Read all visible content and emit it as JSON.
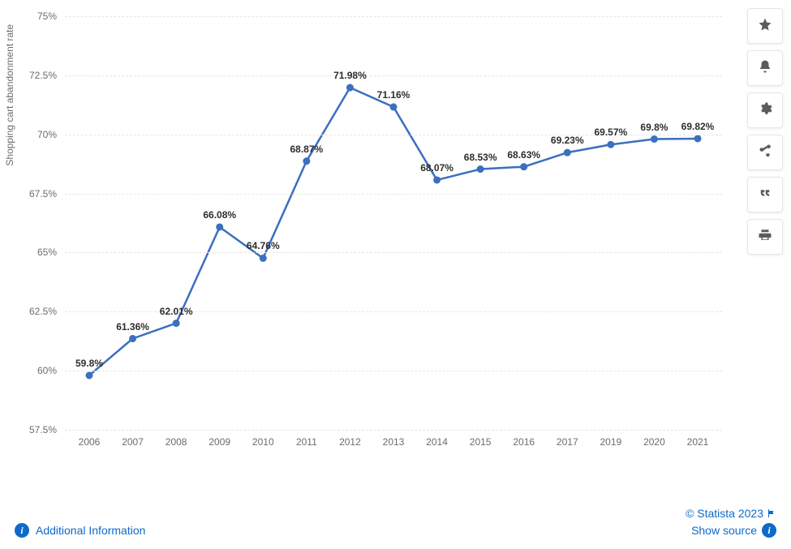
{
  "chart": {
    "type": "line",
    "y_axis_label": "Shopping cart abandonment rate",
    "ylim": [
      57.5,
      75
    ],
    "ytick_step": 2.5,
    "yticks": [
      57.5,
      60,
      62.5,
      65,
      67.5,
      70,
      72.5,
      75
    ],
    "ytick_labels": [
      "57.5%",
      "60%",
      "62.5%",
      "65%",
      "67.5%",
      "70%",
      "72.5%",
      "75%"
    ],
    "categories": [
      "2006",
      "2007",
      "2008",
      "2009",
      "2010",
      "2011",
      "2012",
      "2013",
      "2014",
      "2015",
      "2016",
      "2017",
      "2019",
      "2020",
      "2021"
    ],
    "values": [
      59.8,
      61.36,
      62.01,
      66.08,
      64.76,
      68.87,
      71.98,
      71.16,
      68.07,
      68.53,
      68.63,
      69.23,
      69.57,
      69.8,
      69.82
    ],
    "value_labels": [
      "59.8%",
      "61.36%",
      "62.01%",
      "66.08%",
      "64.76%",
      "68.87%",
      "71.98%",
      "71.16%",
      "68.07%",
      "68.53%",
      "68.63%",
      "69.23%",
      "69.57%",
      "69.8%",
      "69.82%"
    ],
    "line_color": "#3b6fbf",
    "line_width": 2.5,
    "marker_color": "#3b6fbf",
    "marker_radius": 4.5,
    "grid_color": "#e6e6e6",
    "background_color": "#ffffff",
    "tick_fontsize": 12,
    "tick_color": "#6c6c6c",
    "data_label_fontsize": 12,
    "data_label_color": "#2d2d2d"
  },
  "footer": {
    "additional_info": "Additional Information",
    "copyright": "© Statista 2023",
    "show_source": "Show source"
  },
  "tools": {
    "favorite": "favorite",
    "alert": "alert",
    "settings": "settings",
    "share": "share",
    "cite": "cite",
    "print": "print"
  }
}
